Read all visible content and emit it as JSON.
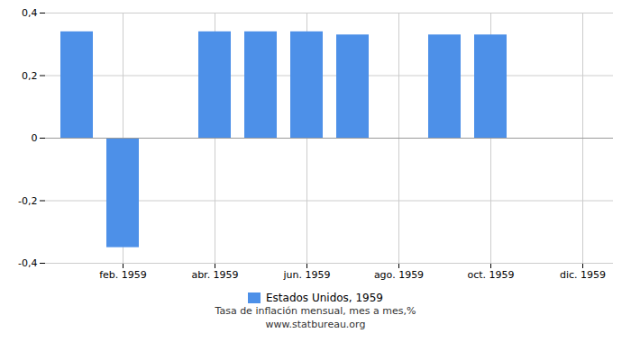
{
  "chart_data": {
    "type": "bar",
    "categories": [
      null,
      "feb. 1959",
      null,
      "abr. 1959",
      null,
      "jun. 1959",
      null,
      "ago. 1959",
      null,
      "oct. 1959",
      null,
      "dic. 1959"
    ],
    "series": [
      {
        "name": "Estados Unidos, 1959",
        "color": "#4d90e8",
        "values": [
          0.34,
          -0.35,
          0.0,
          0.34,
          0.34,
          0.34,
          0.33,
          0.0,
          0.33,
          0.33,
          0.0,
          0.0
        ]
      }
    ],
    "ylim": [
      -0.4,
      0.4
    ],
    "yticks": [
      {
        "value": -0.4,
        "label": "-0,4"
      },
      {
        "value": -0.2,
        "label": "-0,2"
      },
      0,
      {
        "value": 0.2,
        "label": "0,2"
      },
      {
        "value": 0.4,
        "label": "0,4"
      }
    ],
    "grid": true,
    "legend": "bottom",
    "annotations": [
      "Tasa de inflación mensual, mes a mes,%",
      "www.statbureau.org"
    ]
  }
}
